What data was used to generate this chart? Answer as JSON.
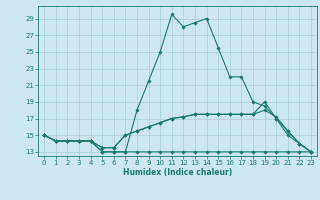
{
  "title": "",
  "xlabel": "Humidex (Indice chaleur)",
  "background_color": "#cce8ee",
  "line_color": "#1a7a6e",
  "grid_color": "#aacdd6",
  "xlim": [
    -0.5,
    23.5
  ],
  "ylim": [
    12.5,
    30.5
  ],
  "xticks": [
    0,
    1,
    2,
    3,
    4,
    5,
    6,
    7,
    8,
    9,
    10,
    11,
    12,
    13,
    14,
    15,
    16,
    17,
    18,
    19,
    20,
    21,
    22,
    23
  ],
  "yticks": [
    13,
    15,
    17,
    19,
    21,
    23,
    25,
    27,
    29
  ],
  "lines": [
    {
      "x": [
        0,
        1,
        2,
        3,
        4,
        5,
        6,
        7,
        8,
        9,
        10,
        11,
        12,
        13,
        14,
        15,
        16,
        17,
        18,
        19,
        20,
        21,
        22,
        23
      ],
      "y": [
        15,
        14.3,
        14.3,
        14.3,
        14.3,
        13,
        13,
        13,
        18,
        21.5,
        25,
        29.5,
        28,
        28.5,
        29,
        25.5,
        22,
        22,
        19,
        18.5,
        17,
        15,
        14,
        13
      ]
    },
    {
      "x": [
        0,
        1,
        2,
        3,
        4,
        5,
        6,
        7,
        8,
        9,
        10,
        11,
        12,
        13,
        14,
        15,
        16,
        17,
        18,
        19,
        20,
        21,
        22,
        23
      ],
      "y": [
        15,
        14.3,
        14.3,
        14.3,
        14.3,
        13,
        13,
        13,
        13,
        13,
        13,
        13,
        13,
        13,
        13,
        13,
        13,
        13,
        13,
        13,
        13,
        13,
        13,
        13
      ]
    },
    {
      "x": [
        0,
        1,
        2,
        3,
        4,
        5,
        6,
        7,
        8,
        9,
        10,
        11,
        12,
        13,
        14,
        15,
        16,
        17,
        18,
        19,
        20,
        21,
        22,
        23
      ],
      "y": [
        15,
        14.3,
        14.3,
        14.3,
        14.3,
        13.5,
        13.5,
        15,
        15.5,
        16,
        16.5,
        17,
        17.2,
        17.5,
        17.5,
        17.5,
        17.5,
        17.5,
        17.5,
        19,
        17,
        15.5,
        14,
        13
      ]
    },
    {
      "x": [
        0,
        1,
        2,
        3,
        4,
        5,
        6,
        7,
        8,
        9,
        10,
        11,
        12,
        13,
        14,
        15,
        16,
        17,
        18,
        19,
        20,
        21,
        22,
        23
      ],
      "y": [
        15,
        14.3,
        14.3,
        14.3,
        14.3,
        13.5,
        13.5,
        15,
        15.5,
        16,
        16.5,
        17,
        17.2,
        17.5,
        17.5,
        17.5,
        17.5,
        17.5,
        17.5,
        18,
        17.2,
        15.5,
        14,
        13
      ]
    }
  ]
}
